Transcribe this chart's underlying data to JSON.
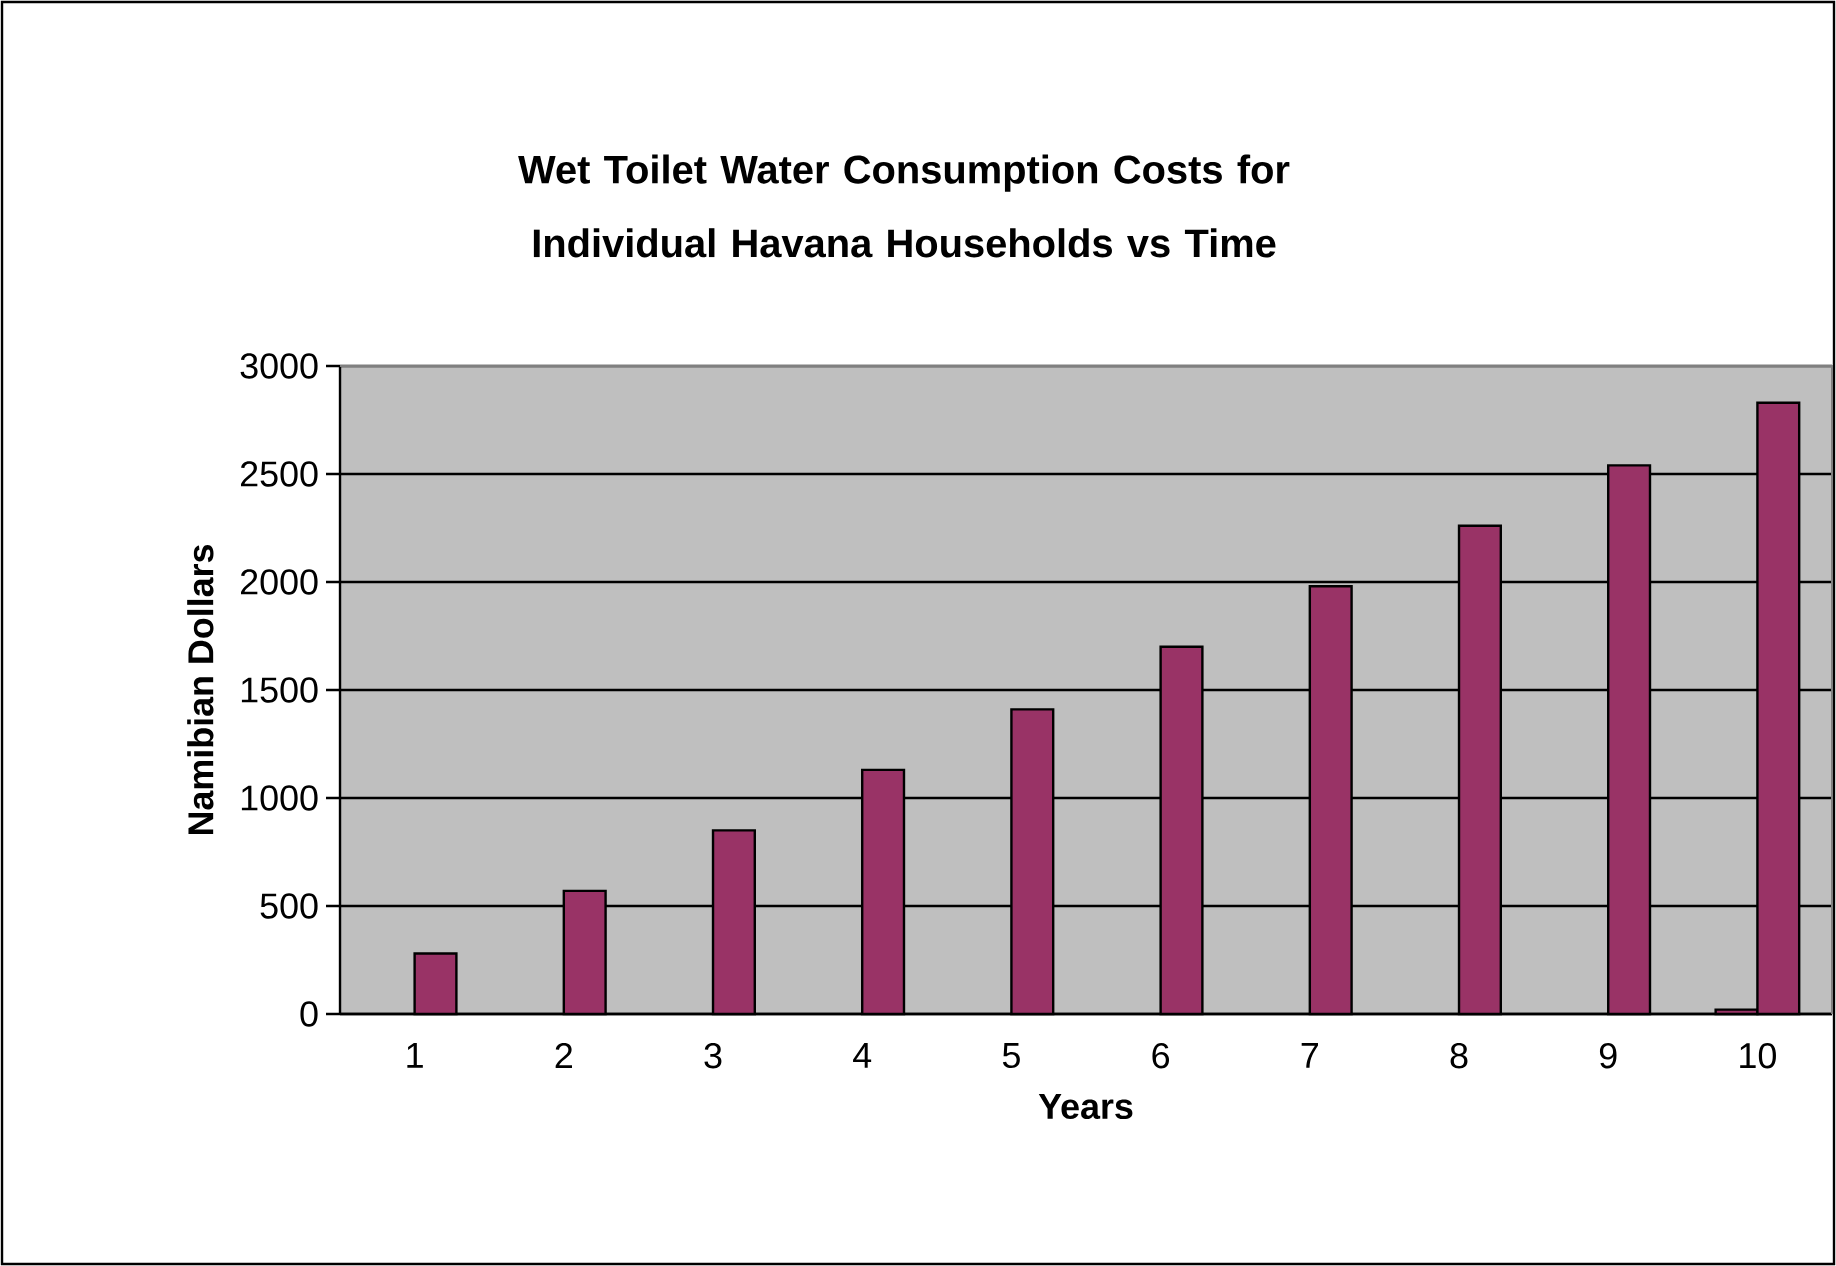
{
  "chart_data": {
    "type": "bar",
    "title": "Wet Toilet Water Consumption Costs for Individual Havana Households vs Time",
    "xlabel": "Years",
    "ylabel": "Namibian Dollars",
    "categories": [
      "1",
      "2",
      "3",
      "4",
      "5",
      "6",
      "7",
      "8",
      "9",
      "10"
    ],
    "series": [
      {
        "color": "#993366",
        "values": [
          null,
          null,
          null,
          null,
          null,
          null,
          null,
          null,
          null,
          20
        ]
      },
      {
        "color": "#993366",
        "values": [
          280,
          570,
          850,
          1130,
          1410,
          1700,
          1980,
          2260,
          2540,
          2830
        ]
      }
    ],
    "ylim": [
      0,
      3000
    ],
    "yticks": [
      0,
      500,
      1000,
      1500,
      2000,
      2500,
      3000
    ],
    "grid": "y"
  }
}
